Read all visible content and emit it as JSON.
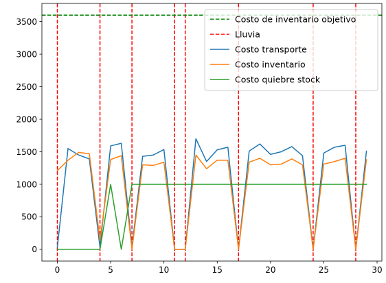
{
  "chart_data": {
    "type": "line",
    "title": "",
    "xlabel": "",
    "ylabel": "",
    "xlim": [
      -1.45,
      30.45
    ],
    "ylim": [
      -180,
      3780
    ],
    "xticks": [
      0,
      5,
      10,
      15,
      20,
      25,
      30
    ],
    "yticks": [
      0,
      500,
      1000,
      1500,
      2000,
      2500,
      3000,
      3500
    ],
    "grid": false,
    "legend_position": "top-right",
    "x": [
      0,
      1,
      2,
      3,
      4,
      5,
      6,
      7,
      8,
      9,
      10,
      11,
      12,
      13,
      14,
      15,
      16,
      17,
      18,
      19,
      20,
      21,
      22,
      23,
      24,
      25,
      26,
      27,
      28,
      29
    ],
    "reference_lines": [
      {
        "name": "Costo de inventario objetivo",
        "orientation": "horizontal",
        "value": 3600,
        "color": "#008000",
        "style": "dashed"
      }
    ],
    "event_lines": {
      "name": "Lluvia",
      "orientation": "vertical",
      "values": [
        0,
        4,
        7,
        11,
        12,
        17,
        24,
        28
      ],
      "color": "#ff0000",
      "style": "dashed"
    },
    "series": [
      {
        "name": "Costo transporte",
        "color": "#1f77b4",
        "values": [
          30,
          1550,
          1450,
          1390,
          30,
          1590,
          1630,
          30,
          1430,
          1450,
          1535,
          0,
          0,
          1700,
          1350,
          1530,
          1570,
          0,
          1510,
          1620,
          1460,
          1500,
          1580,
          1440,
          0,
          1480,
          1570,
          1600,
          0,
          1510
        ]
      },
      {
        "name": "Costo inventario",
        "color": "#ff7f0e",
        "values": [
          1210,
          1370,
          1490,
          1470,
          140,
          1380,
          1440,
          0,
          1300,
          1290,
          1340,
          0,
          0,
          1450,
          1240,
          1370,
          1370,
          0,
          1340,
          1400,
          1300,
          1310,
          1390,
          1300,
          0,
          1310,
          1350,
          1400,
          0,
          1380
        ]
      },
      {
        "name": "Costo quiebre stock",
        "color": "#2ca02c",
        "values": [
          0,
          0,
          0,
          0,
          0,
          1000,
          0,
          1000,
          1000,
          1000,
          1000,
          1000,
          1000,
          1000,
          1000,
          1000,
          1000,
          1000,
          1000,
          1000,
          1000,
          1000,
          1000,
          1000,
          1000,
          1000,
          1000,
          1000,
          1000,
          1000
        ]
      }
    ]
  }
}
